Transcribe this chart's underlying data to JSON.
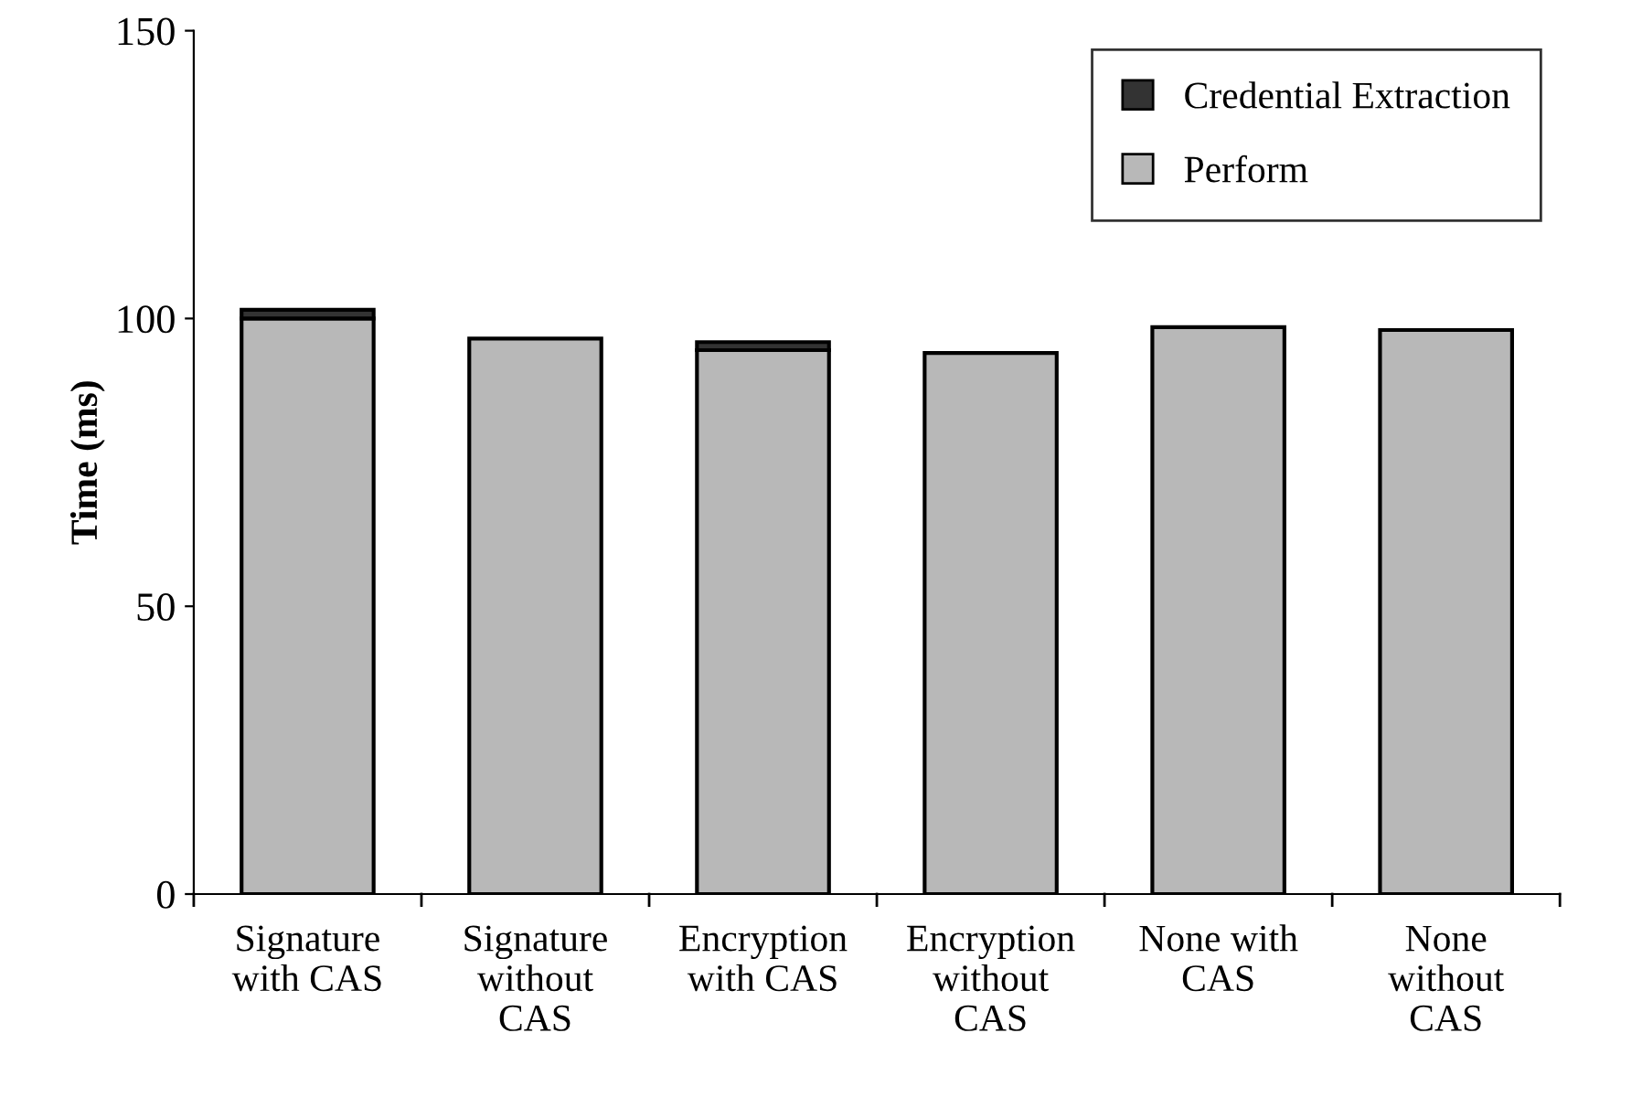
{
  "chart_data": {
    "type": "bar",
    "stacked": true,
    "ylabel": "Time (ms)",
    "categories": [
      "Signature\nwith CAS",
      "Signature\nwithout\nCAS",
      "Encryption\nwith CAS",
      "Encryption\nwithout\nCAS",
      "None with\nCAS",
      "None\nwithout\nCAS"
    ],
    "series": [
      {
        "name": "Perform",
        "color": "#b8b8b8",
        "values": [
          100,
          96.5,
          94.5,
          94,
          98.5,
          98
        ]
      },
      {
        "name": "Credential Extraction",
        "color": "#333333",
        "values": [
          1.5,
          null,
          1.4,
          null,
          null,
          null
        ]
      }
    ],
    "ylim": [
      0,
      150
    ],
    "yticks": [
      0,
      50,
      100,
      150
    ],
    "grid": false,
    "legend": "top right"
  }
}
